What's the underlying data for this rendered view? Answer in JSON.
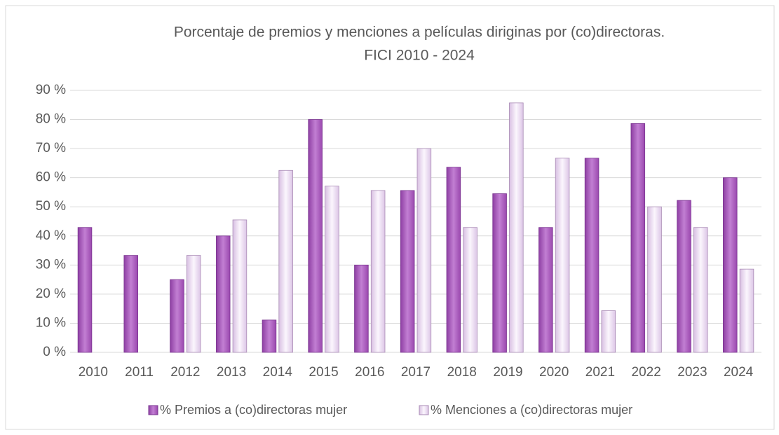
{
  "chart_data": {
    "type": "bar",
    "title": "Porcentaje de premios y menciones a películas diriginas por (co)directoras.",
    "subtitle": "FICI 2010 - 2024",
    "categories": [
      "2010",
      "2011",
      "2012",
      "2013",
      "2014",
      "2015",
      "2016",
      "2017",
      "2018",
      "2019",
      "2020",
      "2021",
      "2022",
      "2023",
      "2024"
    ],
    "series": [
      {
        "name": "% Premios a (co)directoras mujer",
        "color": "#b266c6",
        "values": [
          42.9,
          33.3,
          25,
          40,
          11.1,
          80,
          30,
          55.6,
          63.6,
          54.5,
          42.9,
          66.7,
          78.6,
          52.2,
          60
        ]
      },
      {
        "name": "% Menciones a (co)directoras mujer",
        "color": "#efe0f4",
        "values": [
          null,
          null,
          33.3,
          45.5,
          62.5,
          57.1,
          55.6,
          70,
          42.9,
          85.7,
          66.7,
          14.3,
          50,
          42.9,
          28.6
        ]
      }
    ],
    "ylim": [
      0,
      90
    ],
    "yticks": [
      {
        "value": 0,
        "label": "0 %"
      },
      {
        "value": 10,
        "label": "10 %"
      },
      {
        "value": 20,
        "label": "20 %"
      },
      {
        "value": 30,
        "label": "30 %"
      },
      {
        "value": 40,
        "label": "40 %"
      },
      {
        "value": 50,
        "label": "50 %"
      },
      {
        "value": 60,
        "label": "60 %"
      },
      {
        "value": 70,
        "label": "70 %"
      },
      {
        "value": 80,
        "label": "80 %"
      },
      {
        "value": 90,
        "label": "90 %"
      }
    ],
    "grid": true,
    "legend": "bottom"
  }
}
